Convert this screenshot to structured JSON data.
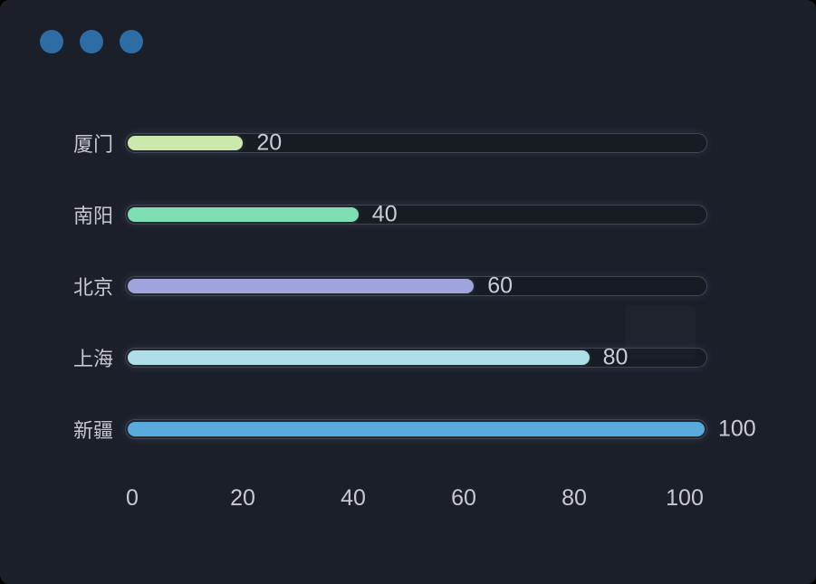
{
  "window": {
    "dot_count": 3,
    "dot_color": "#2e6da4"
  },
  "colors": {
    "panel_bg": "#1a1f2a",
    "outside_bg": "#000000",
    "track_border": "#3e4553",
    "category_text": "#c6c8d2",
    "value_text": "#c9ccd6",
    "axis_text": "#c6c9d3"
  },
  "chart_data": {
    "type": "bar",
    "orientation": "horizontal",
    "title": "",
    "xlabel": "",
    "ylabel": "",
    "categories": [
      "厦门",
      "南阳",
      "北京",
      "上海",
      "新疆"
    ],
    "values": [
      20,
      40,
      60,
      80,
      100
    ],
    "value_labels": [
      "20",
      "40",
      "60",
      "80",
      "100"
    ],
    "bar_colors": [
      "#cbe9ad",
      "#7fdfb4",
      "#9fa5dc",
      "#aedfe9",
      "#5aaadd"
    ],
    "ticks": [
      "0",
      "20",
      "40",
      "60",
      "80",
      "100"
    ],
    "xlim": [
      0,
      100
    ],
    "grid": false,
    "legend": "none"
  }
}
